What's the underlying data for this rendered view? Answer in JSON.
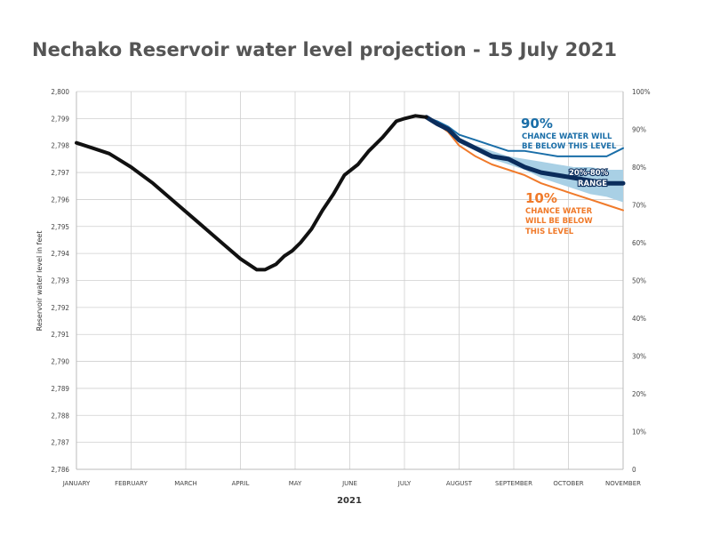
{
  "chart_data": {
    "type": "line",
    "title": "Nechako Reservoir water level projection - 15 July 2021",
    "xlabel": "2021",
    "ylabel": "Reservoir water level in feet",
    "ylim": [
      2786,
      2800
    ],
    "yticks": [
      "2,786",
      "2,787",
      "2,788",
      "2,789",
      "2,790",
      "2,791",
      "2,792",
      "2,793",
      "2,794",
      "2,795",
      "2,796",
      "2,797",
      "2,798",
      "2,799",
      "2,800"
    ],
    "y2ticks": [
      "0",
      "10%",
      "20%",
      "30%",
      "40%",
      "50%",
      "60%",
      "70%",
      "80%",
      "90%",
      "100%"
    ],
    "categories": [
      "JANUARY",
      "FEBRUARY",
      "MARCH",
      "APRIL",
      "MAY",
      "JUNE",
      "JULY",
      "AUGUST",
      "SEPTEMBER",
      "OCTOBER",
      "NOVEMBER"
    ],
    "grid": true,
    "series": [
      {
        "key": "observed",
        "color": "#111111",
        "x": [
          0,
          0.3,
          0.6,
          1.0,
          1.4,
          1.8,
          2.2,
          2.6,
          3.0,
          3.3,
          3.45,
          3.55,
          3.65,
          3.8,
          3.95,
          4.1,
          4.3,
          4.5,
          4.7,
          4.9,
          5.15,
          5.35,
          5.6,
          5.85,
          6.0,
          6.2,
          6.4
        ],
        "values": [
          2798.1,
          2797.9,
          2797.7,
          2797.2,
          2796.6,
          2795.9,
          2795.2,
          2794.5,
          2793.8,
          2793.4,
          2793.4,
          2793.5,
          2793.6,
          2793.9,
          2794.1,
          2794.4,
          2794.9,
          2795.6,
          2796.2,
          2796.9,
          2797.3,
          2797.8,
          2798.3,
          2798.9,
          2799.0,
          2799.1,
          2799.05
        ]
      },
      {
        "key": "p90",
        "name": "90%",
        "color": "#1a6ea8",
        "x": [
          6.4,
          6.6,
          6.8,
          7.0,
          7.3,
          7.6,
          7.9,
          8.2,
          8.5,
          8.8,
          9.1,
          9.4,
          9.7,
          10.0
        ],
        "values": [
          2799.05,
          2798.9,
          2798.7,
          2798.4,
          2798.2,
          2798.0,
          2797.8,
          2797.8,
          2797.7,
          2797.6,
          2797.6,
          2797.6,
          2797.6,
          2797.9
        ]
      },
      {
        "key": "median",
        "color": "#0b2d5c",
        "x": [
          6.4,
          6.6,
          6.8,
          7.0,
          7.3,
          7.6,
          7.9,
          8.2,
          8.5,
          8.8,
          9.1,
          9.4,
          9.7,
          10.0
        ],
        "values": [
          2799.05,
          2798.8,
          2798.6,
          2798.2,
          2797.9,
          2797.6,
          2797.5,
          2797.2,
          2797.0,
          2796.9,
          2796.8,
          2796.7,
          2796.6,
          2796.6
        ]
      },
      {
        "key": "p10",
        "name": "10%",
        "color": "#f07a2a",
        "x": [
          6.4,
          6.6,
          6.8,
          7.0,
          7.3,
          7.6,
          7.9,
          8.2,
          8.5,
          8.8,
          9.1,
          9.4,
          9.7,
          10.0
        ],
        "values": [
          2799.05,
          2798.8,
          2798.5,
          2798.0,
          2797.6,
          2797.3,
          2797.1,
          2796.9,
          2796.6,
          2796.4,
          2796.2,
          2796.0,
          2795.8,
          2795.6
        ]
      }
    ],
    "band": {
      "name": "20%-80% RANGE",
      "color": "#a9d0e5",
      "x": [
        6.4,
        6.6,
        6.8,
        7.0,
        7.3,
        7.6,
        7.9,
        8.2,
        8.5,
        8.8,
        9.1,
        9.4,
        9.7,
        10.0
      ],
      "upper": [
        2799.05,
        2798.85,
        2798.65,
        2798.3,
        2798.0,
        2797.8,
        2797.6,
        2797.5,
        2797.4,
        2797.3,
        2797.2,
        2797.2,
        2797.1,
        2797.1
      ],
      "lower": [
        2799.05,
        2798.8,
        2798.55,
        2798.1,
        2797.8,
        2797.5,
        2797.3,
        2797.1,
        2796.8,
        2796.6,
        2796.4,
        2796.2,
        2796.1,
        2795.9
      ]
    },
    "annotations": {
      "p90_big": "90%",
      "p90_line1": "CHANCE WATER WILL",
      "p90_line2": "BE BELOW THIS LEVEL",
      "band_line1": "20%-80%",
      "band_line2": "RANGE",
      "p10_big": "10%",
      "p10_line1": "CHANCE WATER",
      "p10_line2": "WILL BE BELOW",
      "p10_line3": "THIS LEVEL"
    }
  }
}
